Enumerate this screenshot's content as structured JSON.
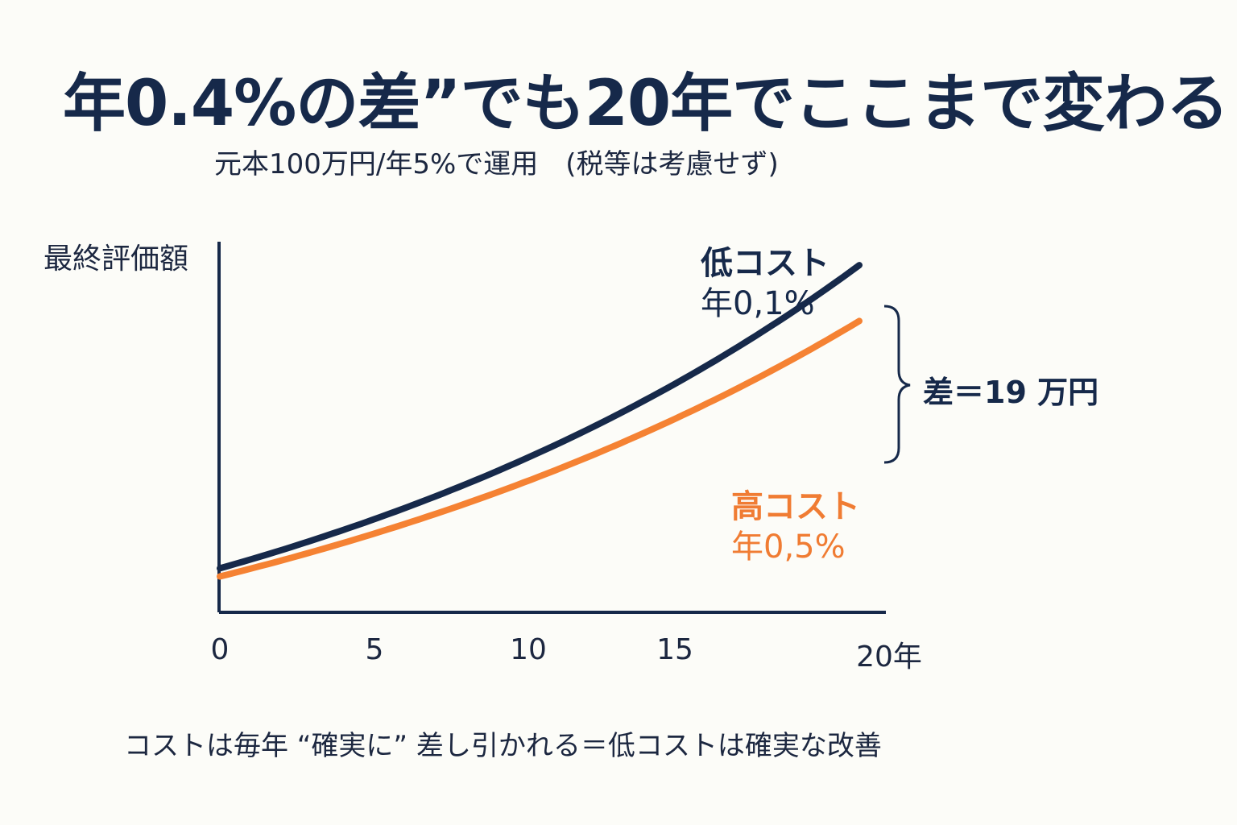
{
  "title": "年0.4%の差”でも20年でここまで変わる",
  "subtitle": "元本100万円/年5%で運用　(税等は考慮せず)",
  "footer": "コストは毎年 “確実に” 差し引かれる＝低コストは確実な改善",
  "chart_data": {
    "type": "line",
    "ylabel": "最終評価額",
    "x_ticks": [
      {
        "value": 0,
        "label": "0"
      },
      {
        "value": 5,
        "label": "5"
      },
      {
        "value": 10,
        "label": "10"
      },
      {
        "value": 15,
        "label": "15"
      },
      {
        "value": 20,
        "label": "20年"
      }
    ],
    "xlim": [
      0,
      20
    ],
    "ylim": [
      90,
      285
    ],
    "principal": 100,
    "annual_return": 0.05,
    "series": [
      {
        "id": "low",
        "name": "低コスト",
        "rate_label": "年0,1%",
        "cost": 0.001,
        "color": "#16294a"
      },
      {
        "id": "high",
        "name": "高コスト",
        "rate_label": "年0,5%",
        "cost": 0.005,
        "color": "#f58233"
      }
    ],
    "annotation": "差＝19 万円",
    "grid": false
  }
}
